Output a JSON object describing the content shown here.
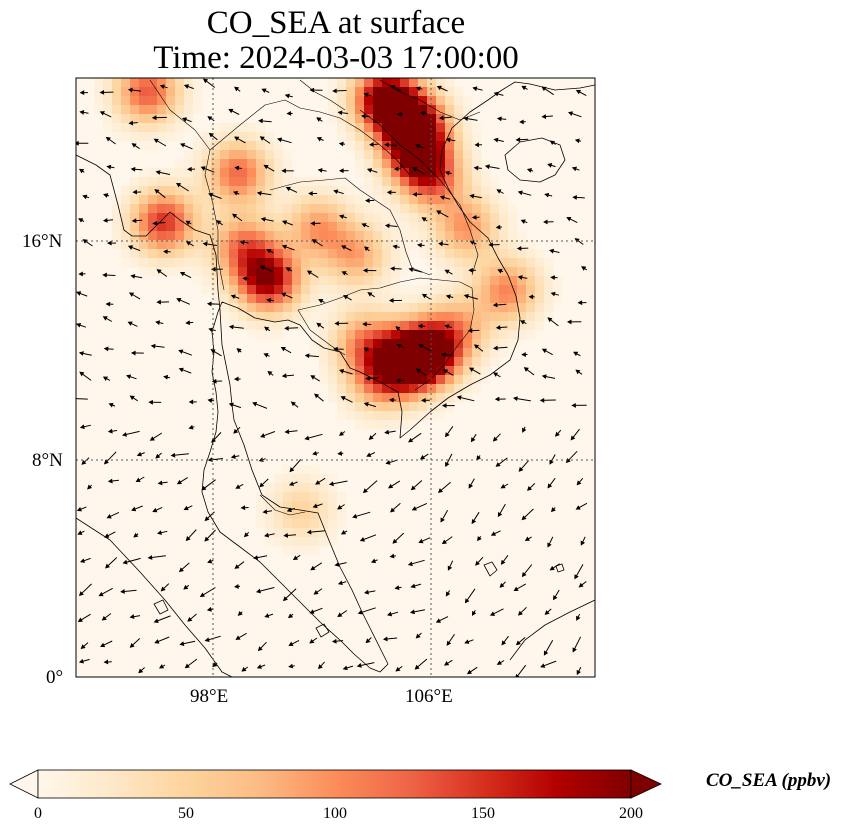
{
  "title_line1": "CO_SEA at surface",
  "title_line2": "Time: 2024-03-03 17:00:00",
  "map": {
    "lon_range": [
      93.3,
      112.2
    ],
    "lat_range": [
      0,
      22
    ],
    "gridlines": "dotted",
    "lon_ticks": [
      {
        "value": 98,
        "label": "98°E"
      },
      {
        "value": 106,
        "label": "106°E"
      }
    ],
    "lat_ticks": [
      {
        "value": 16,
        "label": "16°N"
      },
      {
        "value": 8,
        "label": "8°N"
      },
      {
        "value": 0,
        "label": "0°"
      }
    ],
    "field_name": "CO_SEA",
    "colormap": "OrRd",
    "hotspots": [
      {
        "lon": 104.6,
        "lat": 21.2,
        "value": 220
      },
      {
        "lon": 105.6,
        "lat": 20.3,
        "value": 200
      },
      {
        "lon": 105.7,
        "lat": 19.2,
        "value": 160
      },
      {
        "lon": 106.3,
        "lat": 18.3,
        "value": 110
      },
      {
        "lon": 107.5,
        "lat": 16.5,
        "value": 95
      },
      {
        "lon": 109.0,
        "lat": 14.2,
        "value": 105
      },
      {
        "lon": 100.3,
        "lat": 14.6,
        "value": 190
      },
      {
        "lon": 99.4,
        "lat": 15.8,
        "value": 110
      },
      {
        "lon": 99.2,
        "lat": 18.5,
        "value": 120
      },
      {
        "lon": 96.5,
        "lat": 16.7,
        "value": 150
      },
      {
        "lon": 95.9,
        "lat": 21.5,
        "value": 130
      },
      {
        "lon": 102.1,
        "lat": 16.5,
        "value": 90
      },
      {
        "lon": 103.5,
        "lat": 15.5,
        "value": 85
      },
      {
        "lon": 105.3,
        "lat": 11.6,
        "value": 210
      },
      {
        "lon": 106.2,
        "lat": 11.9,
        "value": 190
      },
      {
        "lon": 103.8,
        "lat": 12.3,
        "value": 95
      },
      {
        "lon": 104.3,
        "lat": 10.9,
        "value": 90
      },
      {
        "lon": 107.2,
        "lat": 12.8,
        "value": 80
      },
      {
        "lon": 101.5,
        "lat": 6.1,
        "value": 50
      }
    ]
  },
  "colorbar": {
    "min": 0,
    "max": 200,
    "extend": "both",
    "ticks": [
      {
        "value": 0,
        "label": "0"
      },
      {
        "value": 50,
        "label": "50"
      },
      {
        "value": 100,
        "label": "100"
      },
      {
        "value": 150,
        "label": "150"
      },
      {
        "value": 200,
        "label": "200"
      }
    ],
    "label": "CO_SEA (ppbv)",
    "colors": [
      "#fff7ec",
      "#fee8c8",
      "#fdd49e",
      "#fdbb84",
      "#fc8d59",
      "#ef6548",
      "#d7301f",
      "#b30000",
      "#7f0000"
    ]
  }
}
